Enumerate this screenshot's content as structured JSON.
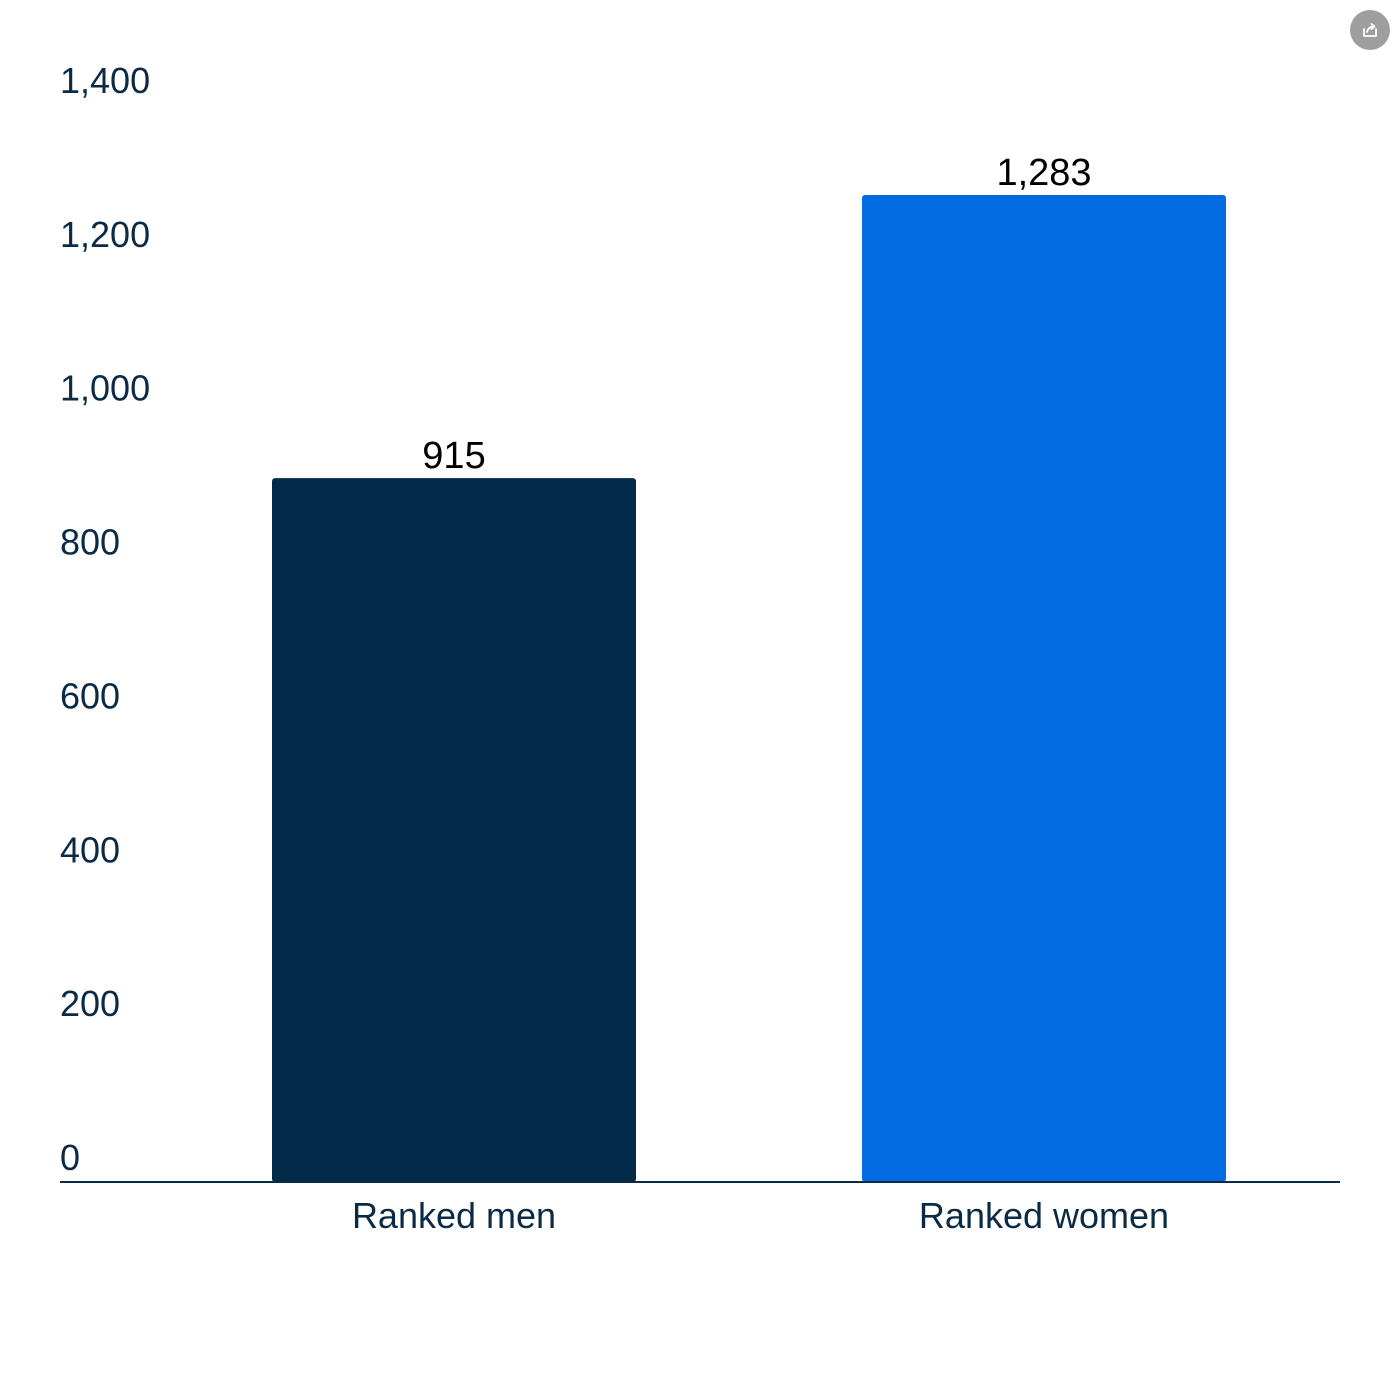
{
  "share": {
    "icon": "share-icon",
    "color": "#9e9e9e"
  },
  "chart_data": {
    "type": "bar",
    "title": "",
    "xlabel": "",
    "ylabel": "",
    "categories": [
      "Ranked men",
      "Ranked women"
    ],
    "values": [
      915,
      1283
    ],
    "value_labels": [
      "915",
      "1,283"
    ],
    "colors": [
      "#022b4a",
      "#026be2"
    ],
    "ylim": [
      0,
      1400
    ],
    "yticks": [
      0,
      200,
      400,
      600,
      800,
      1000,
      1200,
      1400
    ],
    "ytick_labels": [
      "0",
      "200",
      "400",
      "600",
      "800",
      "1,000",
      "1,200",
      "1,400"
    ],
    "grid": false,
    "legend": "none",
    "axis_color": "#0b2a45"
  }
}
